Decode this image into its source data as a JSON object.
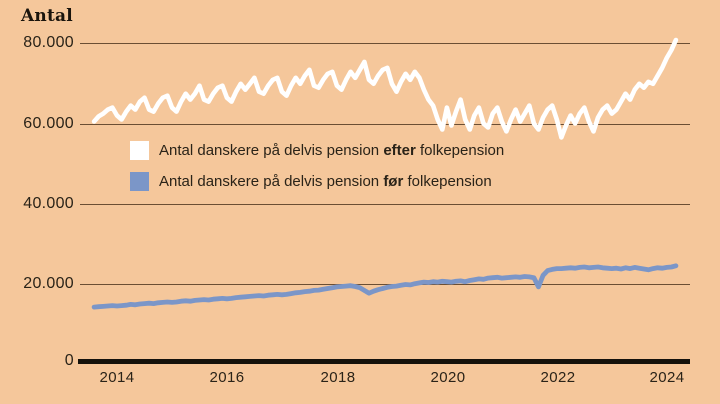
{
  "title": "Antal",
  "colors": {
    "background": "#F5C79B",
    "line_after": "#FFFFFF",
    "line_before": "#7B96C8",
    "grid": "#6B4E33",
    "axis": "#15120C",
    "text": "#2A2318"
  },
  "legend": {
    "series1": {
      "prefix": "Antal danskere på delvis pension ",
      "bold": "efter",
      "suffix": " folkepension",
      "swatch_color": "#FFFFFF"
    },
    "series2": {
      "prefix": "Antal danskere på delvis pension ",
      "bold": "før",
      "suffix": " folkepension",
      "swatch_color": "#7B96C8"
    }
  },
  "chart_data": {
    "type": "line",
    "title": "Antal",
    "grid": "horizontal",
    "legend_position": "inside-top-left",
    "x_axis": {
      "tick_labels": [
        "2014",
        "2016",
        "2018",
        "2020",
        "2022",
        "2024"
      ],
      "tick_values": [
        2014,
        2016,
        2018,
        2020,
        2022,
        2024
      ],
      "range": [
        2013.4,
        2024.4
      ]
    },
    "y_axis": {
      "tick_labels": [
        "80.000",
        "60.000",
        "40.000",
        "20.000",
        "0"
      ],
      "tick_values": [
        80000,
        60000,
        40000,
        20000,
        0
      ],
      "range": [
        0,
        85000
      ]
    },
    "x_start_year": 2013.5833,
    "x_step_years": 0.0833,
    "series": [
      {
        "name": "Antal danskere på delvis pension efter folkepension",
        "color": "#FFFFFF",
        "values": [
          60500,
          61800,
          62500,
          63500,
          64000,
          62000,
          61000,
          63000,
          64500,
          63500,
          65500,
          66500,
          63500,
          63000,
          65000,
          66500,
          67000,
          64000,
          63000,
          65500,
          67500,
          66000,
          67500,
          69500,
          66000,
          65500,
          67500,
          69000,
          69500,
          66500,
          65500,
          68000,
          70000,
          68500,
          70000,
          71500,
          68000,
          67500,
          69500,
          71000,
          71500,
          68000,
          67000,
          69500,
          71500,
          70000,
          72000,
          73500,
          69500,
          69000,
          71000,
          72500,
          73000,
          69500,
          68500,
          71000,
          73000,
          71500,
          73500,
          75500,
          71000,
          70000,
          72000,
          73500,
          74000,
          70000,
          68000,
          70500,
          72500,
          71000,
          73000,
          71500,
          68500,
          66000,
          64500,
          61000,
          58500,
          64000,
          59500,
          63000,
          66000,
          61000,
          58500,
          62000,
          64000,
          60000,
          59000,
          62500,
          64000,
          60500,
          58000,
          61000,
          63500,
          60500,
          62500,
          64500,
          60000,
          58500,
          61500,
          63500,
          64500,
          61000,
          56500,
          59500,
          62000,
          60000,
          62500,
          64000,
          60500,
          58000,
          61500,
          63500,
          64500,
          62500,
          63500,
          65500,
          67500,
          66000,
          68500,
          70000,
          69000,
          70500,
          70000,
          72000,
          74000,
          76500,
          78500,
          81000
        ]
      },
      {
        "name": "Antal danskere på delvis pension før folkepension",
        "color": "#7B96C8",
        "values": [
          13800,
          13900,
          14000,
          14100,
          14200,
          14100,
          14200,
          14300,
          14500,
          14400,
          14600,
          14700,
          14800,
          14700,
          14900,
          15000,
          15100,
          15000,
          15100,
          15300,
          15400,
          15300,
          15500,
          15600,
          15700,
          15600,
          15800,
          15900,
          16000,
          15900,
          16000,
          16200,
          16300,
          16400,
          16500,
          16600,
          16700,
          16600,
          16800,
          16900,
          17000,
          16900,
          17000,
          17200,
          17400,
          17500,
          17700,
          17800,
          18000,
          18100,
          18300,
          18500,
          18700,
          18900,
          19000,
          19100,
          19200,
          19000,
          18700,
          18000,
          17300,
          17800,
          18200,
          18500,
          18800,
          19000,
          19100,
          19300,
          19500,
          19400,
          19700,
          19900,
          20100,
          20000,
          20200,
          20100,
          20300,
          20200,
          20100,
          20300,
          20400,
          20200,
          20500,
          20700,
          20900,
          20800,
          21100,
          21200,
          21300,
          21100,
          21200,
          21300,
          21400,
          21300,
          21500,
          21400,
          21200,
          18900,
          21800,
          23000,
          23300,
          23500,
          23500,
          23600,
          23700,
          23600,
          23800,
          23900,
          23700,
          23800,
          23900,
          23700,
          23600,
          23500,
          23600,
          23400,
          23700,
          23500,
          23800,
          23600,
          23400,
          23200,
          23500,
          23700,
          23600,
          23800,
          23900,
          24200
        ]
      }
    ]
  }
}
